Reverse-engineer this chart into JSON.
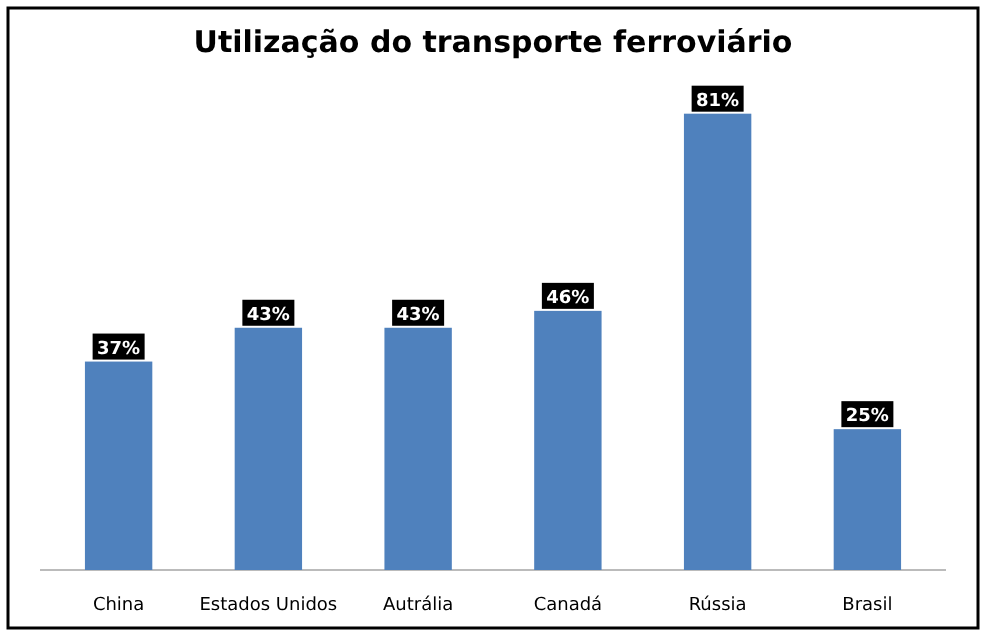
{
  "chart_data": {
    "type": "bar",
    "title": "Utilização do transporte ferroviário",
    "categories": [
      "China",
      "Estados Unidos",
      "Autrália",
      "Canadá",
      "Rússia",
      "Brasil"
    ],
    "values": [
      37,
      43,
      43,
      46,
      81,
      25
    ],
    "value_labels": [
      "37%",
      "43%",
      "43%",
      "46%",
      "81%",
      "25%"
    ],
    "color": "#4f81bd"
  }
}
